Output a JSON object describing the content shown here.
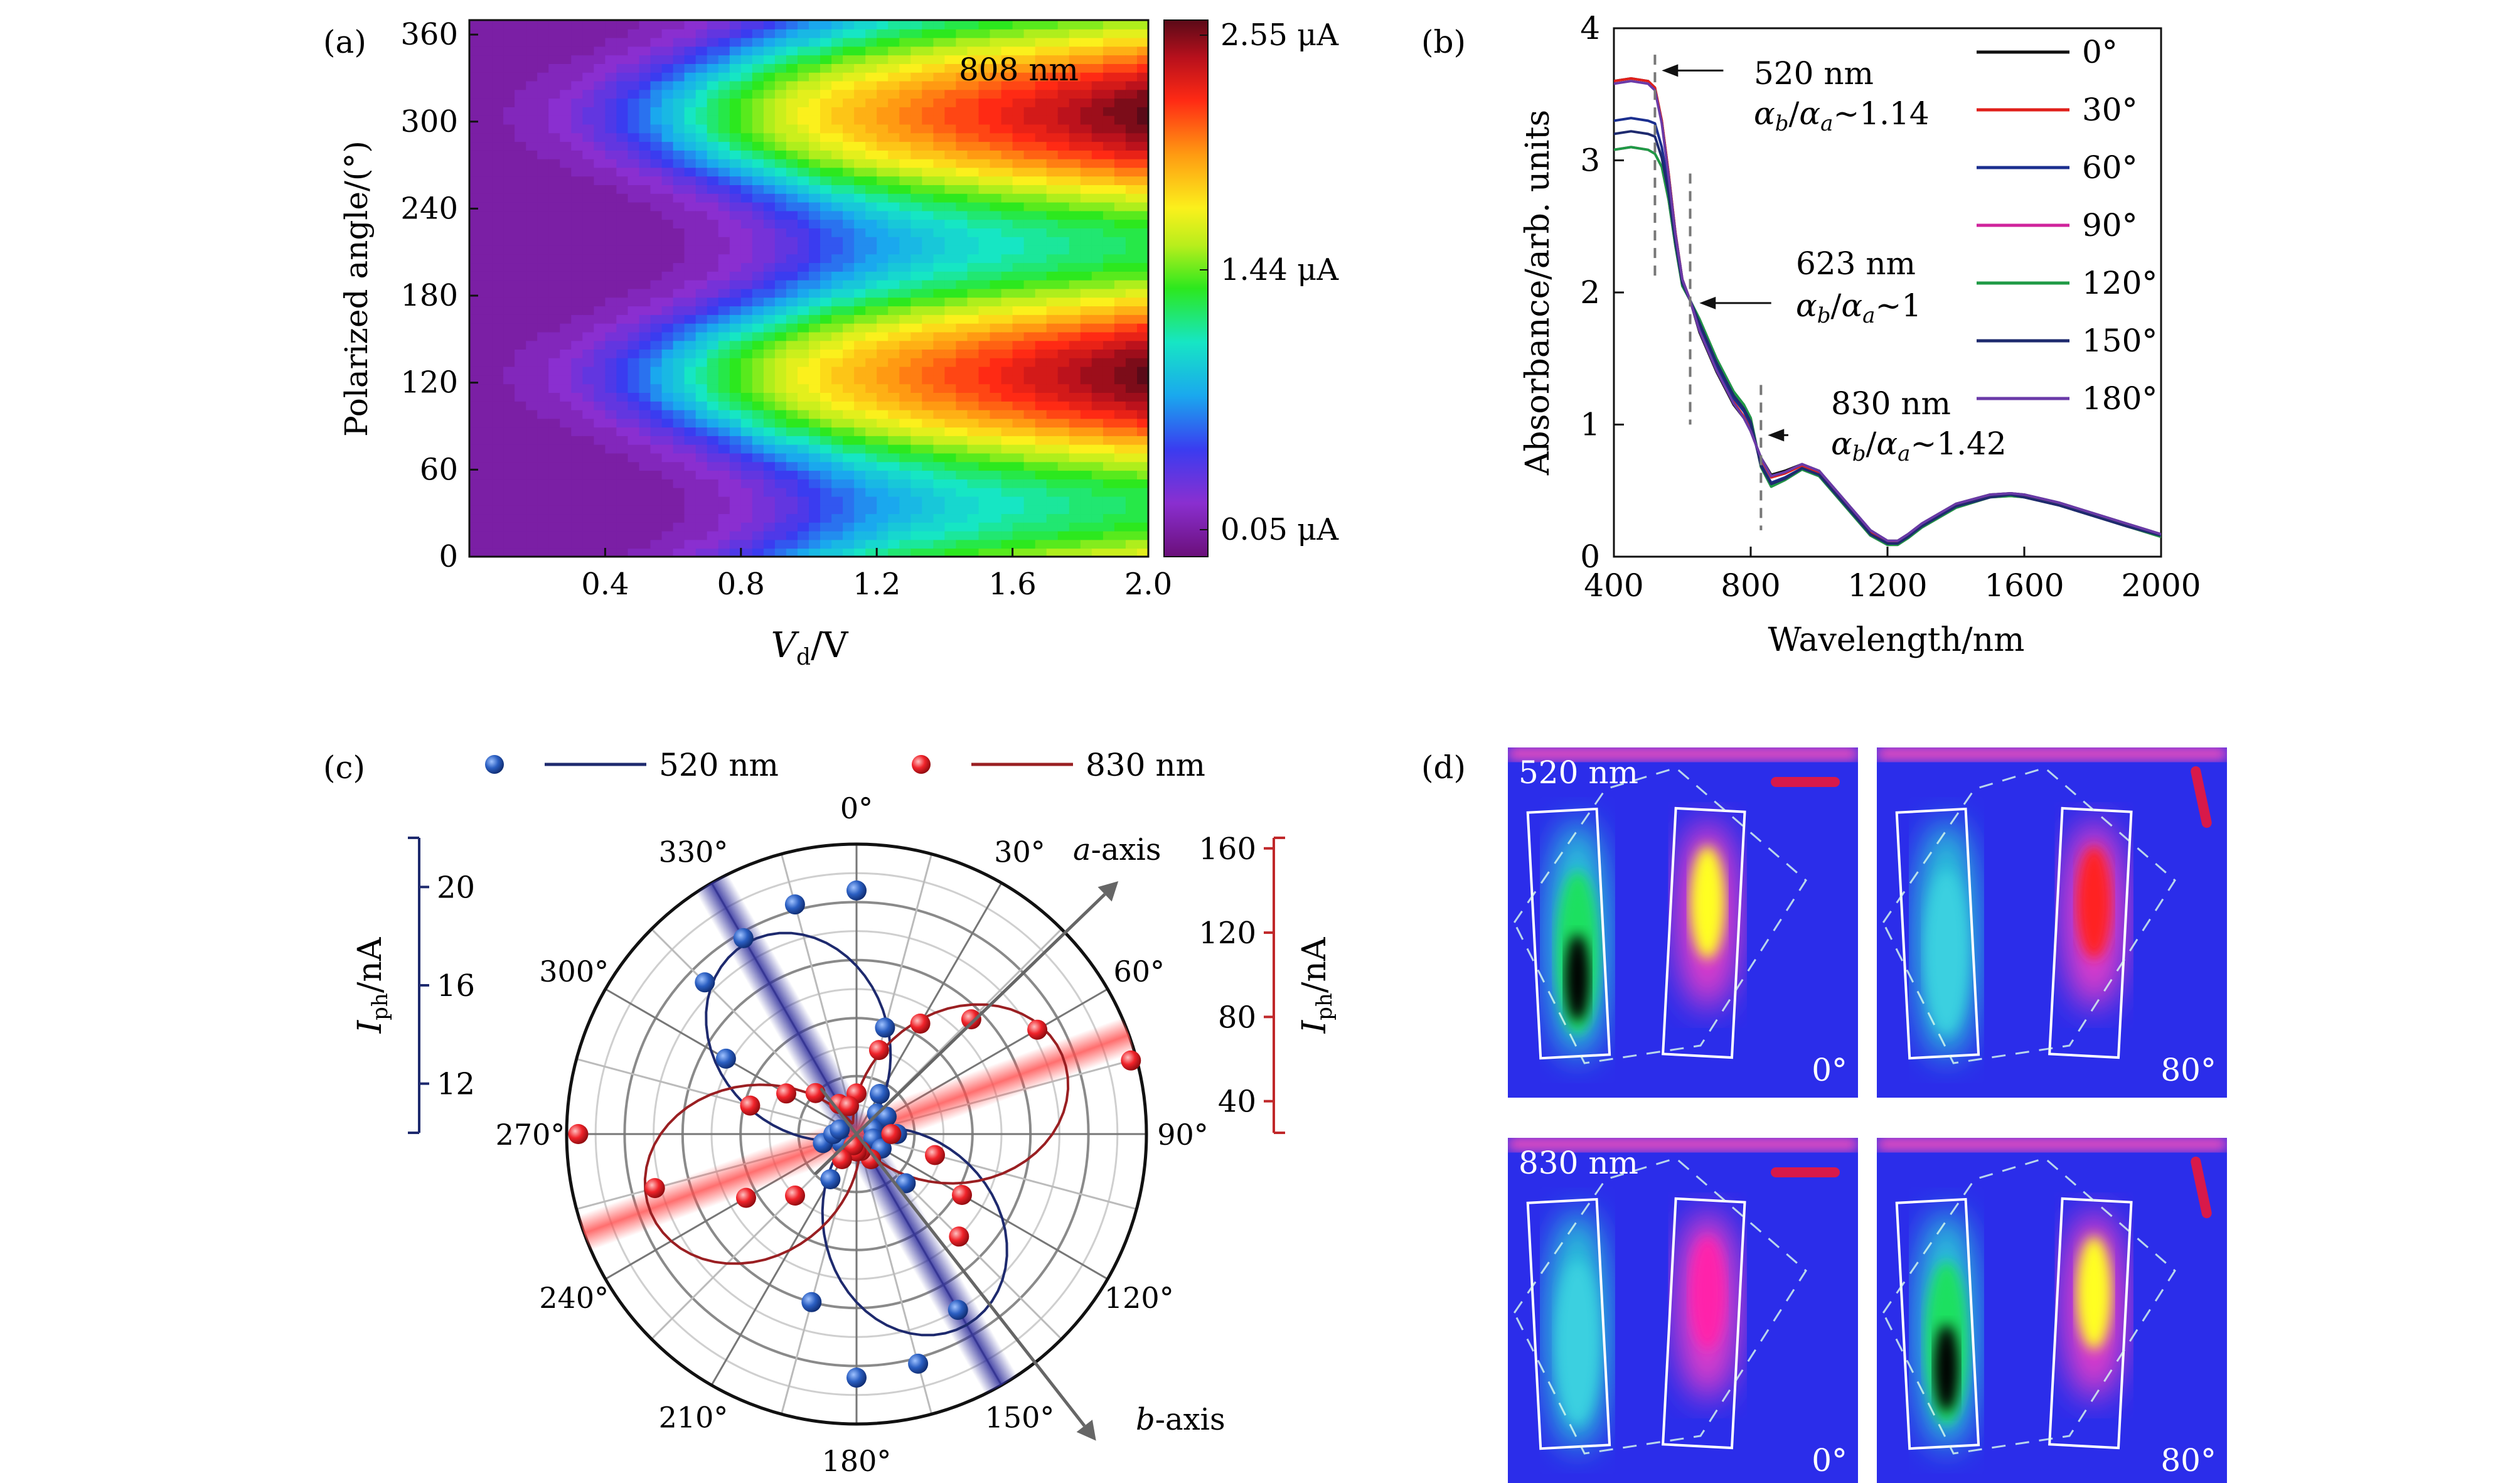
{
  "chart_data": [
    {
      "panel": "(a)",
      "type": "heatmap",
      "xlabel_main": "V",
      "xlabel_sub": "d",
      "xlabel_unit": "/V",
      "ylabel": "Polarized angle/(°)",
      "xlim": [
        0.0,
        2.0
      ],
      "ylim": [
        0,
        370
      ],
      "x_ticks": [
        "0.4",
        "0.8",
        "1.2",
        "1.6",
        "2.0"
      ],
      "y_ticks": [
        "0",
        "60",
        "120",
        "180",
        "240",
        "300",
        "360"
      ],
      "annotation": "808 nm",
      "colorbar_labels": [
        "2.55 μA",
        "1.44 μA",
        "0.05 μA"
      ],
      "colorbar_range": [
        0.05,
        2.55
      ]
    },
    {
      "panel": "(b)",
      "type": "line",
      "xlabel": "Wavelength/nm",
      "ylabel": "Absorbance/arb. units",
      "xlim": [
        400,
        2000
      ],
      "ylim": [
        0,
        4
      ],
      "x_ticks": [
        "400",
        "800",
        "1200",
        "1600",
        "2000"
      ],
      "y_ticks": [
        "0",
        "1",
        "2",
        "3",
        "4"
      ],
      "x": [
        400,
        450,
        500,
        520,
        540,
        560,
        580,
        600,
        623,
        650,
        700,
        750,
        780,
        800,
        830,
        860,
        900,
        950,
        1000,
        1050,
        1100,
        1150,
        1200,
        1230,
        1260,
        1300,
        1400,
        1500,
        1560,
        1600,
        1700,
        1800,
        1900,
        2000
      ],
      "series": [
        {
          "name": "0°",
          "color": "#111111",
          "values": [
            3.6,
            3.62,
            3.6,
            3.55,
            3.3,
            2.9,
            2.45,
            2.1,
            1.94,
            1.7,
            1.4,
            1.15,
            1.05,
            0.95,
            0.75,
            0.62,
            0.65,
            0.7,
            0.65,
            0.5,
            0.35,
            0.2,
            0.12,
            0.12,
            0.17,
            0.25,
            0.4,
            0.47,
            0.48,
            0.47,
            0.41,
            0.33,
            0.25,
            0.17
          ]
        },
        {
          "name": "30°",
          "color": "#e0201b",
          "values": [
            3.6,
            3.62,
            3.6,
            3.55,
            3.3,
            2.9,
            2.45,
            2.1,
            1.94,
            1.72,
            1.42,
            1.17,
            1.06,
            0.96,
            0.74,
            0.6,
            0.63,
            0.69,
            0.64,
            0.49,
            0.34,
            0.19,
            0.11,
            0.11,
            0.16,
            0.24,
            0.39,
            0.46,
            0.47,
            0.46,
            0.4,
            0.32,
            0.24,
            0.16
          ]
        },
        {
          "name": "60°",
          "color": "#1b2f8f",
          "values": [
            3.3,
            3.32,
            3.3,
            3.28,
            3.1,
            2.8,
            2.4,
            2.08,
            1.94,
            1.75,
            1.45,
            1.2,
            1.1,
            1.0,
            0.7,
            0.56,
            0.6,
            0.67,
            0.62,
            0.47,
            0.32,
            0.17,
            0.1,
            0.1,
            0.15,
            0.23,
            0.38,
            0.45,
            0.47,
            0.45,
            0.39,
            0.31,
            0.23,
            0.16
          ]
        },
        {
          "name": "90°",
          "color": "#d0249c",
          "values": [
            3.08,
            3.1,
            3.08,
            3.05,
            2.95,
            2.7,
            2.35,
            2.05,
            1.94,
            1.8,
            1.5,
            1.25,
            1.15,
            1.05,
            0.68,
            0.53,
            0.58,
            0.66,
            0.61,
            0.46,
            0.31,
            0.16,
            0.09,
            0.09,
            0.14,
            0.22,
            0.37,
            0.45,
            0.46,
            0.45,
            0.39,
            0.31,
            0.23,
            0.15
          ]
        },
        {
          "name": "120°",
          "color": "#1f9a45",
          "values": [
            3.08,
            3.1,
            3.08,
            3.05,
            2.95,
            2.7,
            2.35,
            2.05,
            1.94,
            1.8,
            1.5,
            1.25,
            1.15,
            1.05,
            0.68,
            0.53,
            0.58,
            0.66,
            0.61,
            0.46,
            0.31,
            0.16,
            0.09,
            0.09,
            0.14,
            0.22,
            0.37,
            0.45,
            0.46,
            0.45,
            0.39,
            0.31,
            0.23,
            0.15
          ]
        },
        {
          "name": "150°",
          "color": "#1e2a6e",
          "values": [
            3.2,
            3.22,
            3.2,
            3.18,
            3.02,
            2.75,
            2.38,
            2.07,
            1.94,
            1.77,
            1.47,
            1.22,
            1.12,
            1.02,
            0.69,
            0.55,
            0.59,
            0.67,
            0.62,
            0.47,
            0.32,
            0.17,
            0.1,
            0.1,
            0.15,
            0.23,
            0.38,
            0.45,
            0.47,
            0.45,
            0.39,
            0.31,
            0.23,
            0.16
          ]
        },
        {
          "name": "180°",
          "color": "#6a3aa8",
          "values": [
            3.58,
            3.6,
            3.58,
            3.53,
            3.28,
            2.88,
            2.44,
            2.1,
            1.94,
            1.71,
            1.41,
            1.16,
            1.05,
            0.95,
            0.75,
            0.61,
            0.64,
            0.7,
            0.65,
            0.5,
            0.35,
            0.2,
            0.12,
            0.12,
            0.17,
            0.25,
            0.4,
            0.47,
            0.48,
            0.47,
            0.41,
            0.33,
            0.25,
            0.17
          ]
        }
      ],
      "annotations": [
        {
          "line1": "520 nm",
          "line2": "α",
          "sub_b": "b",
          "sub_a": "a",
          "ratio": "~1.14",
          "x": 520
        },
        {
          "line1": "623 nm",
          "line2": "α",
          "sub_b": "b",
          "sub_a": "a",
          "ratio": "~1",
          "x": 623
        },
        {
          "line1": "830 nm",
          "line2": "α",
          "sub_b": "b",
          "sub_a": "a",
          "ratio": "~1.42",
          "x": 830
        }
      ]
    },
    {
      "panel": "(c)",
      "type": "scatter",
      "projection": "polar",
      "angle_labels": [
        "0°",
        "30°",
        "60°",
        "90°",
        "120°",
        "150°",
        "180°",
        "210°",
        "240°",
        "270°",
        "300°",
        "330°"
      ],
      "axis_labels": {
        "a": "a",
        "a_suffix": "-axis",
        "b": "b",
        "b_suffix": "-axis"
      },
      "left_axis": {
        "label": "I",
        "sub": "ph",
        "unit": "/nA",
        "ticks": [
          "12",
          "16",
          "20"
        ],
        "range": [
          10,
          22
        ],
        "color": "#1e2a6e"
      },
      "right_axis": {
        "label": "I",
        "sub": "ph",
        "unit": "/nA",
        "ticks": [
          "40",
          "80",
          "120",
          "160"
        ],
        "range": [
          25,
          165
        ],
        "color": "#c0282a"
      },
      "legend": [
        {
          "name": "520 nm",
          "color": "#1f4e9c"
        },
        {
          "name": "830 nm",
          "color": "#d8191c"
        }
      ],
      "series": [
        {
          "name": "520 nm",
          "color": "#1f4e9c",
          "angles": [
            0,
            15,
            30,
            45,
            60,
            75,
            90,
            105,
            120,
            135,
            150,
            165,
            180,
            195,
            210,
            225,
            240,
            255,
            270,
            285,
            300,
            315,
            330,
            345
          ],
          "values": [
            0.84,
            0.38,
            0.16,
            0.1,
            0.12,
            0.06,
            0.14,
            0.06,
            0.1,
            0.24,
            0.7,
            0.82,
            0.84,
            0.6,
            0.18,
            0.06,
            0.06,
            0.12,
            0.08,
            0.06,
            0.52,
            0.74,
            0.78,
            0.82
          ]
        },
        {
          "name": "830 nm",
          "color": "#d8191c",
          "angles": [
            0,
            15,
            30,
            45,
            60,
            75,
            90,
            105,
            120,
            135,
            150,
            165,
            180,
            195,
            210,
            225,
            240,
            255,
            270,
            285,
            300,
            315,
            330,
            345
          ],
          "values": [
            0.14,
            0.3,
            0.44,
            0.56,
            0.72,
            0.98,
            0.12,
            0.28,
            0.42,
            0.5,
            0.1,
            0.06,
            0.06,
            0.04,
            0.1,
            0.3,
            0.44,
            0.72,
            0.96,
            0.38,
            0.28,
            0.2,
            0.12,
            0.1
          ]
        }
      ]
    },
    {
      "panel": "(d)",
      "type": "heatmap",
      "images": [
        {
          "wavelength": "520 nm",
          "angle": "0°"
        },
        {
          "wavelength": "",
          "angle": "80°"
        },
        {
          "wavelength": "830 nm",
          "angle": "0°"
        },
        {
          "wavelength": "",
          "angle": "80°"
        }
      ]
    }
  ]
}
